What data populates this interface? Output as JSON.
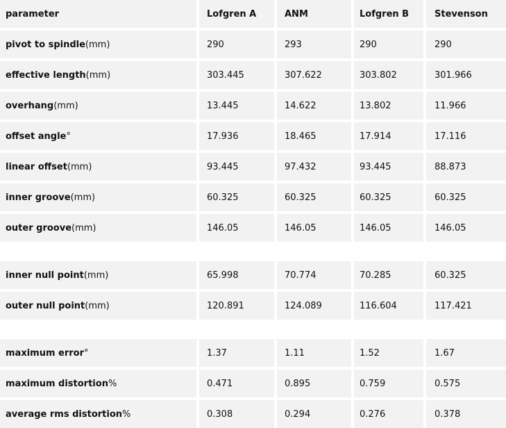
{
  "table": {
    "headers": [
      "parameter",
      "Lofgren A",
      "ANM",
      "Lofgren B",
      "Stevenson"
    ],
    "rows": [
      {
        "name": "pivot to spindle",
        "unit": " (mm)",
        "values": [
          "290",
          "293",
          "290",
          "290"
        ]
      },
      {
        "name": "effective length",
        "unit": " (mm)",
        "values": [
          "303.445",
          "307.622",
          "303.802",
          "301.966"
        ]
      },
      {
        "name": "overhang",
        "unit": " (mm)",
        "values": [
          "13.445",
          "14.622",
          "13.802",
          "11.966"
        ]
      },
      {
        "name": "offset angle",
        "unit": " °",
        "values": [
          "17.936",
          "18.465",
          "17.914",
          "17.116"
        ]
      },
      {
        "name": "linear offset",
        "unit": " (mm)",
        "values": [
          "93.445",
          "97.432",
          "93.445",
          "88.873"
        ]
      },
      {
        "name": "inner groove",
        "unit": " (mm)",
        "values": [
          "60.325",
          "60.325",
          "60.325",
          "60.325"
        ]
      },
      {
        "name": "outer groove",
        "unit": " (mm)",
        "values": [
          "146.05",
          "146.05",
          "146.05",
          "146.05"
        ]
      },
      {
        "name": "inner null point",
        "unit": " (mm)",
        "values": [
          "65.998",
          "70.774",
          "70.285",
          "60.325"
        ]
      },
      {
        "name": "outer null point",
        "unit": " (mm)",
        "values": [
          "120.891",
          "124.089",
          "116.604",
          "117.421"
        ]
      },
      {
        "name": "maximum error",
        "unit": " °",
        "values": [
          "1.37",
          "1.11",
          "1.52",
          "1.67"
        ]
      },
      {
        "name": "maximum distortion",
        "unit": " %",
        "values": [
          "0.471",
          "0.895",
          "0.759",
          "0.575"
        ]
      },
      {
        "name": "average rms distortion",
        "unit": " %",
        "values": [
          "0.308",
          "0.294",
          "0.276",
          "0.378"
        ]
      }
    ]
  }
}
